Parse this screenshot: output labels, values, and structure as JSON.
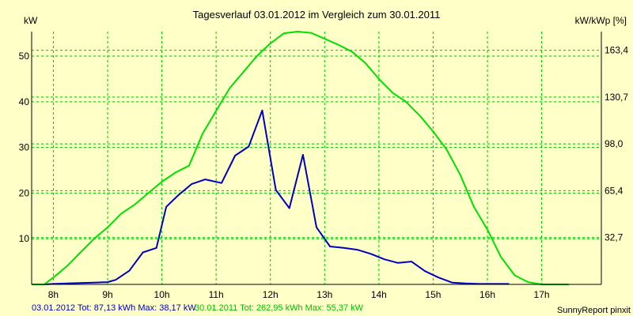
{
  "chart_data": {
    "type": "line",
    "title": "Tagesverlauf 03.01.2012 im Vergleich zum 30.01.2011",
    "ylabel_left": "kW",
    "ylabel_right": "kW/kWp [%]",
    "x_ticks": [
      "8h",
      "9h",
      "10h",
      "11h",
      "12h",
      "13h",
      "14h",
      "15h",
      "16h",
      "17h"
    ],
    "x_tick_values": [
      8,
      9,
      10,
      11,
      12,
      13,
      14,
      15,
      16,
      17
    ],
    "xlim": [
      7.6,
      18.1
    ],
    "ylim": [
      0,
      55.37
    ],
    "y_ticks_left": [
      10,
      20,
      30,
      40,
      50
    ],
    "y_ticks_right": [
      {
        "value": 10.26,
        "label": "32,7"
      },
      {
        "value": 20.52,
        "label": "65,4"
      },
      {
        "value": 30.78,
        "label": "98,0"
      },
      {
        "value": 41.03,
        "label": "130,7"
      },
      {
        "value": 51.29,
        "label": "163,4"
      }
    ],
    "grid": true,
    "series": [
      {
        "name": "03.01.2012",
        "color": "#0000c0",
        "x": [
          7.6,
          7.83,
          8,
          8.25,
          8.5,
          8.75,
          9,
          9.15,
          9.4,
          9.65,
          9.9,
          10.08,
          10.3,
          10.55,
          10.8,
          11.1,
          11.35,
          11.6,
          11.85,
          12.1,
          12.35,
          12.6,
          12.85,
          13.1,
          13.35,
          13.6,
          13.85,
          14.1,
          14.35,
          14.6,
          14.85,
          15.1,
          15.35,
          15.6,
          15.85,
          16.1,
          16.4
        ],
        "values": [
          0,
          0,
          0.1,
          0.2,
          0.3,
          0.4,
          0.5,
          1,
          3,
          7,
          8,
          17,
          19.5,
          22,
          23,
          22.2,
          28.2,
          30.2,
          38.1,
          20.7,
          16.7,
          28.4,
          12.5,
          8.3,
          8.0,
          7.6,
          6.7,
          5.5,
          4.7,
          5.0,
          2.9,
          1.5,
          0.4,
          0.2,
          0.1,
          0.1,
          0.1
        ]
      },
      {
        "name": "30.01.2011",
        "color": "#00e000",
        "x": [
          7.6,
          7.83,
          8,
          8.25,
          8.5,
          8.75,
          9,
          9.25,
          9.5,
          9.75,
          10,
          10.25,
          10.5,
          10.75,
          11,
          11.25,
          11.5,
          11.75,
          12,
          12.25,
          12.5,
          12.75,
          13,
          13.25,
          13.5,
          13.75,
          14,
          14.25,
          14.5,
          14.75,
          15,
          15.25,
          15.5,
          15.75,
          16,
          16.25,
          16.5,
          16.75,
          17,
          17.25,
          17.5
        ],
        "values": [
          0,
          0,
          1.5,
          4,
          7,
          10,
          12.5,
          15.5,
          17.5,
          20,
          22.5,
          24.5,
          26,
          33,
          38,
          43,
          46.5,
          50,
          52.8,
          55,
          55.37,
          55.1,
          53.8,
          52.5,
          51,
          48.5,
          45,
          42,
          40,
          37,
          33.5,
          29.5,
          24,
          17,
          12,
          6,
          2,
          0.5,
          0,
          0,
          0
        ]
      }
    ]
  },
  "footer": {
    "series1_summary": "03.01.2012 Tot: 87,13 kWh Max: 38,17 kW",
    "series2_summary": "30.01.2011 Tot: 262,95 kWh Max: 55,37 kW",
    "credit": "SunnyReport pinxit"
  }
}
